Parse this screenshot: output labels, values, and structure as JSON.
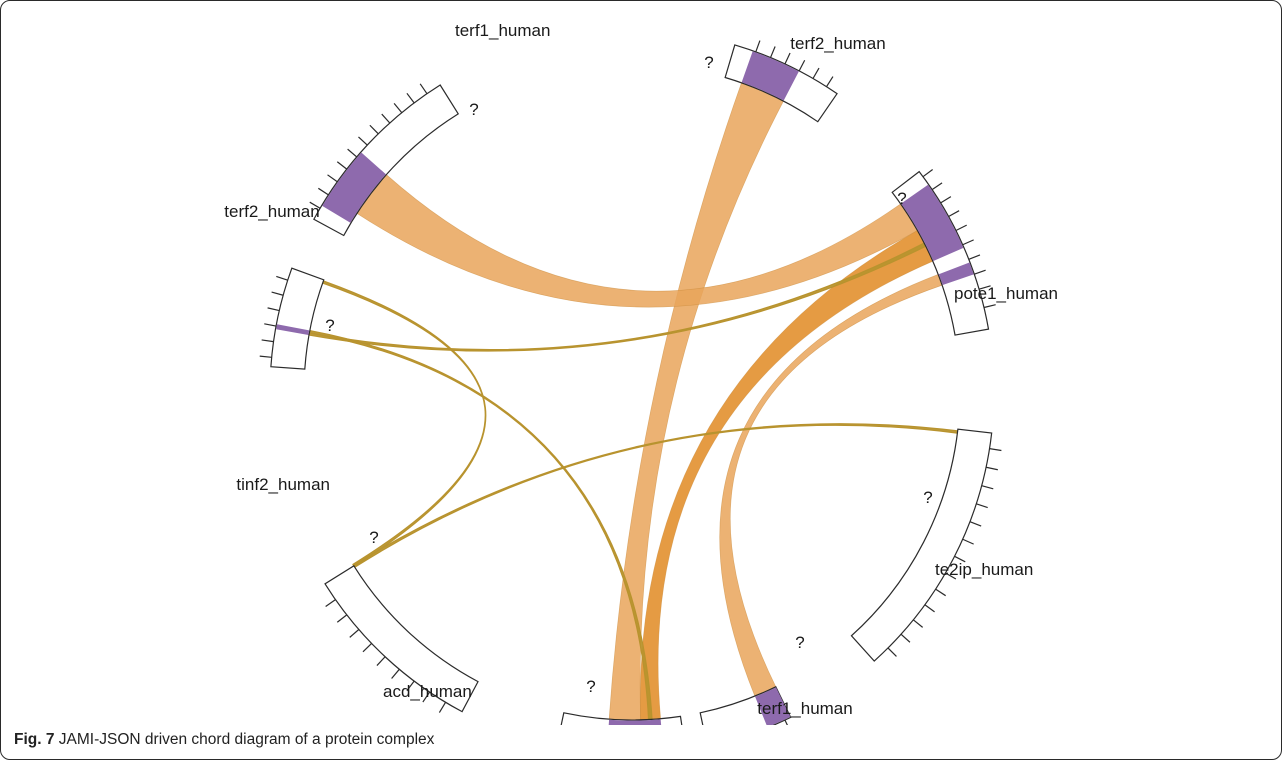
{
  "colors": {
    "segment_stroke": "#2b2b2b",
    "binding_site": "#8e6aad",
    "ribbon_light": "#e9a55a",
    "ribbon_dark": "#e08a22",
    "ribbon_stroke": "#c98a3a",
    "thin_link": "#b8932e"
  },
  "segments": [
    {
      "id": "terf1_top",
      "label": "terf1_human",
      "unknown_marker": "?"
    },
    {
      "id": "terf2_top",
      "label": "terf2_human",
      "unknown_marker": "?"
    },
    {
      "id": "pote1",
      "label": "pote1_human",
      "unknown_marker": "?"
    },
    {
      "id": "te2ip",
      "label": "te2ip_human",
      "unknown_marker": "?"
    },
    {
      "id": "terf1_bottom",
      "label": "terf1_human",
      "unknown_marker": "?"
    },
    {
      "id": "acd",
      "label": "acd_human",
      "unknown_marker": "?"
    },
    {
      "id": "tinf2",
      "label": "tinf2_human",
      "unknown_marker": "?"
    },
    {
      "id": "terf2_left",
      "label": "terf2_human",
      "unknown_marker": "?"
    }
  ],
  "links": [
    {
      "from": "terf1_top",
      "to": "terf1_bottom",
      "style": "ribbon"
    },
    {
      "from": "terf2_top",
      "to": "terf2_left",
      "style": "ribbon"
    },
    {
      "from": "terf2_top",
      "to": "terf1_bottom",
      "style": "ribbon"
    },
    {
      "from": "terf2_top",
      "to": "te2ip",
      "style": "ribbon"
    },
    {
      "from": "tinf2",
      "to": "terf2_top",
      "style": "thin"
    },
    {
      "from": "tinf2",
      "to": "terf1_bottom",
      "style": "thin"
    },
    {
      "from": "pote1",
      "to": "acd",
      "style": "thin"
    },
    {
      "from": "tinf2",
      "to": "acd",
      "style": "thin"
    }
  ],
  "caption": {
    "label": "Fig. 7",
    "text": "JAMI-JSON driven chord diagram of a protein complex"
  }
}
